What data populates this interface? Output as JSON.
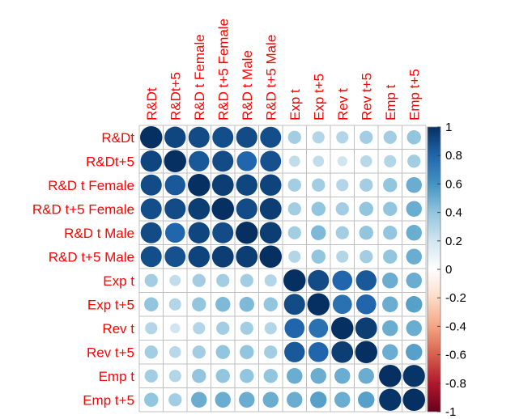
{
  "chart_data": {
    "type": "heatmap",
    "variables": [
      "R&Dt",
      "R&Dt+5",
      "R&D t Female",
      "R&D t+5 Female",
      "R&D t Male",
      "R&D t+5 Male",
      "Exp t",
      "Exp t+5",
      "Rev t",
      "Rev t+5",
      "Emp t",
      "Emp t+5"
    ],
    "matrix": [
      [
        1.0,
        0.92,
        0.9,
        0.89,
        0.9,
        0.89,
        0.35,
        0.3,
        0.3,
        0.35,
        0.35,
        0.4
      ],
      [
        0.92,
        1.0,
        0.85,
        0.9,
        0.8,
        0.88,
        0.25,
        0.25,
        0.2,
        0.28,
        0.3,
        0.35
      ],
      [
        0.9,
        0.85,
        1.0,
        0.95,
        0.92,
        0.93,
        0.35,
        0.35,
        0.3,
        0.35,
        0.4,
        0.5
      ],
      [
        0.89,
        0.9,
        0.95,
        1.0,
        0.9,
        0.95,
        0.35,
        0.4,
        0.35,
        0.4,
        0.4,
        0.5
      ],
      [
        0.9,
        0.8,
        0.92,
        0.9,
        1.0,
        0.95,
        0.35,
        0.45,
        0.35,
        0.4,
        0.4,
        0.5
      ],
      [
        0.89,
        0.88,
        0.93,
        0.95,
        0.95,
        1.0,
        0.3,
        0.4,
        0.3,
        0.35,
        0.4,
        0.5
      ],
      [
        0.35,
        0.25,
        0.35,
        0.35,
        0.35,
        0.3,
        1.0,
        0.9,
        0.8,
        0.85,
        0.5,
        0.5
      ],
      [
        0.4,
        0.3,
        0.4,
        0.45,
        0.45,
        0.4,
        0.9,
        1.0,
        0.75,
        0.8,
        0.5,
        0.55
      ],
      [
        0.3,
        0.2,
        0.3,
        0.35,
        0.35,
        0.3,
        0.8,
        0.75,
        1.0,
        0.95,
        0.5,
        0.5
      ],
      [
        0.35,
        0.28,
        0.35,
        0.4,
        0.4,
        0.35,
        0.85,
        0.8,
        0.95,
        1.0,
        0.5,
        0.55
      ],
      [
        0.35,
        0.3,
        0.4,
        0.4,
        0.4,
        0.4,
        0.5,
        0.5,
        0.5,
        0.5,
        1.0,
        0.98
      ],
      [
        0.4,
        0.35,
        0.5,
        0.5,
        0.5,
        0.5,
        0.5,
        0.55,
        0.5,
        0.55,
        0.98,
        1.0
      ]
    ],
    "colorbar": {
      "range": [
        -1,
        1
      ],
      "ticks": [
        "1",
        "0.8",
        "0.6",
        "0.4",
        "0.2",
        "0",
        "-0.2",
        "-0.4",
        "-0.6",
        "-0.8",
        "-1"
      ]
    },
    "colors": {
      "label": "#ff0000",
      "grid": "#bfbfbf",
      "scale": [
        "#67001f",
        "#b2182b",
        "#d6604d",
        "#f4a582",
        "#fddbc7",
        "#ffffff",
        "#d1e5f0",
        "#92c5de",
        "#4393c3",
        "#2166ac",
        "#053061"
      ]
    }
  }
}
